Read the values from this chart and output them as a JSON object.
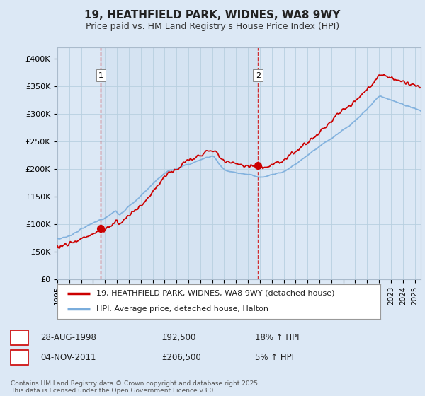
{
  "title": "19, HEATHFIELD PARK, WIDNES, WA8 9WY",
  "subtitle": "Price paid vs. HM Land Registry's House Price Index (HPI)",
  "legend_line1": "19, HEATHFIELD PARK, WIDNES, WA8 9WY (detached house)",
  "legend_line2": "HPI: Average price, detached house, Halton",
  "sale1_label": "1",
  "sale1_date": "28-AUG-1998",
  "sale1_price": "£92,500",
  "sale1_hpi": "18% ↑ HPI",
  "sale1_year": 1998.65,
  "sale1_value": 92500,
  "sale2_label": "2",
  "sale2_date": "04-NOV-2011",
  "sale2_price": "£206,500",
  "sale2_hpi": "5% ↑ HPI",
  "sale2_year": 2011.84,
  "sale2_value": 206500,
  "price_line_color": "#cc0000",
  "hpi_line_color": "#7aaddc",
  "vline_color": "#cc0000",
  "background_color": "#dce8f5",
  "plot_bg_color": "#dce8f5",
  "plot_inner_bg": "#e8f2fb",
  "footer": "Contains HM Land Registry data © Crown copyright and database right 2025.\nThis data is licensed under the Open Government Licence v3.0.",
  "ylim": [
    0,
    420000
  ],
  "xmin": 1995,
  "xmax": 2025.5,
  "yticks": [
    0,
    50000,
    100000,
    150000,
    200000,
    250000,
    300000,
    350000,
    400000
  ],
  "ytick_labels": [
    "£0",
    "£50K",
    "£100K",
    "£150K",
    "£200K",
    "£250K",
    "£300K",
    "£350K",
    "£400K"
  ]
}
